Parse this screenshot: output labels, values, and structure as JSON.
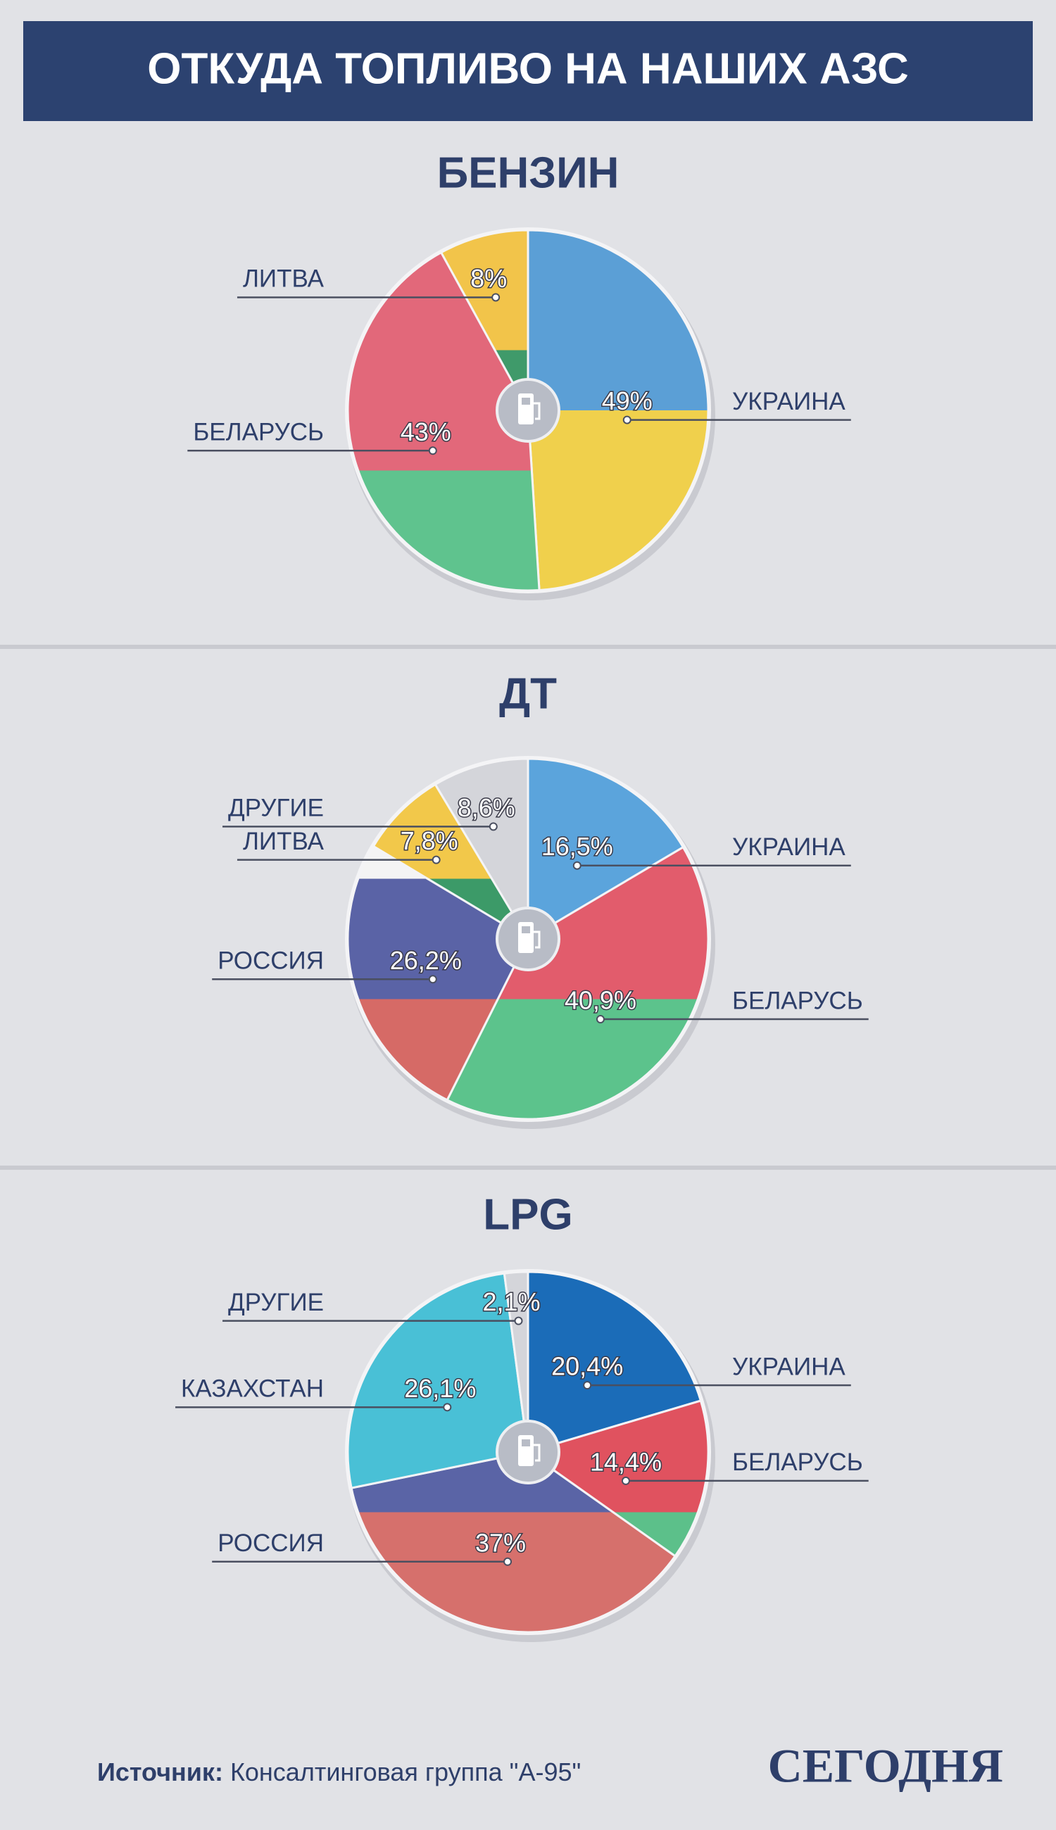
{
  "header": {
    "title": "ОТКУДА ТОПЛИВО НА НАШИХ АЗС"
  },
  "footer": {
    "source_label": "Источник:",
    "source": "Консалтинговая группа \"А-95\"",
    "logo": "СЕГОДНЯ"
  },
  "chart_data": [
    {
      "type": "pie",
      "title": "БЕНЗИН",
      "categories": [
        "УКРАИНА",
        "БЕЛАРУСЬ",
        "ЛИТВА"
      ],
      "values": [
        49,
        43,
        8
      ],
      "value_labels": [
        "49%",
        "43%",
        "8%"
      ],
      "colors": [
        [
          "#5b9fd6",
          "#f0d04c"
        ],
        [
          "#e2687a",
          "#e2687a",
          "#5fc38e"
        ],
        [
          "#f2c44a",
          "#3f9a6a",
          "#d55f5f"
        ]
      ]
    },
    {
      "type": "pie",
      "title": "ДТ",
      "categories": [
        "УКРАИНА",
        "БЕЛАРУСЬ",
        "РОССИЯ",
        "ЛИТВА",
        "ДРУГИЕ"
      ],
      "values": [
        16.5,
        40.9,
        26.2,
        7.8,
        8.6
      ],
      "value_labels": [
        "16,5%",
        "40,9%",
        "26,2%",
        "7,8%",
        "8,6%"
      ],
      "colors": [
        [
          "#5ba4dc",
          "#f2d650"
        ],
        [
          "#e25c6c",
          "#e25c6c",
          "#5cc38c"
        ],
        [
          "#f4f4f4",
          "#5a63a6",
          "#d66a66"
        ],
        [
          "#f2c84a",
          "#3c9a68",
          "#d65a5a"
        ],
        [
          "#d4d5da"
        ]
      ]
    },
    {
      "type": "pie",
      "title": "LPG",
      "categories": [
        "УКРАИНА",
        "БЕЛАРУСЬ",
        "РОССИЯ",
        "КАЗАХСТАН",
        "ДРУГИЕ"
      ],
      "values": [
        20.4,
        14.4,
        37,
        26.1,
        2.1
      ],
      "value_labels": [
        "20,4%",
        "14,4%",
        "37%",
        "26,1%",
        "2,1%"
      ],
      "colors": [
        [
          "#1b6cb8",
          "#e9c31e"
        ],
        [
          "#e0525f",
          "#e0525f",
          "#5cc08a"
        ],
        [
          "#f3f3f3",
          "#5a64a6",
          "#d6706c"
        ],
        [
          "#49c0d6"
        ],
        [
          "#d4d5da"
        ]
      ]
    }
  ]
}
